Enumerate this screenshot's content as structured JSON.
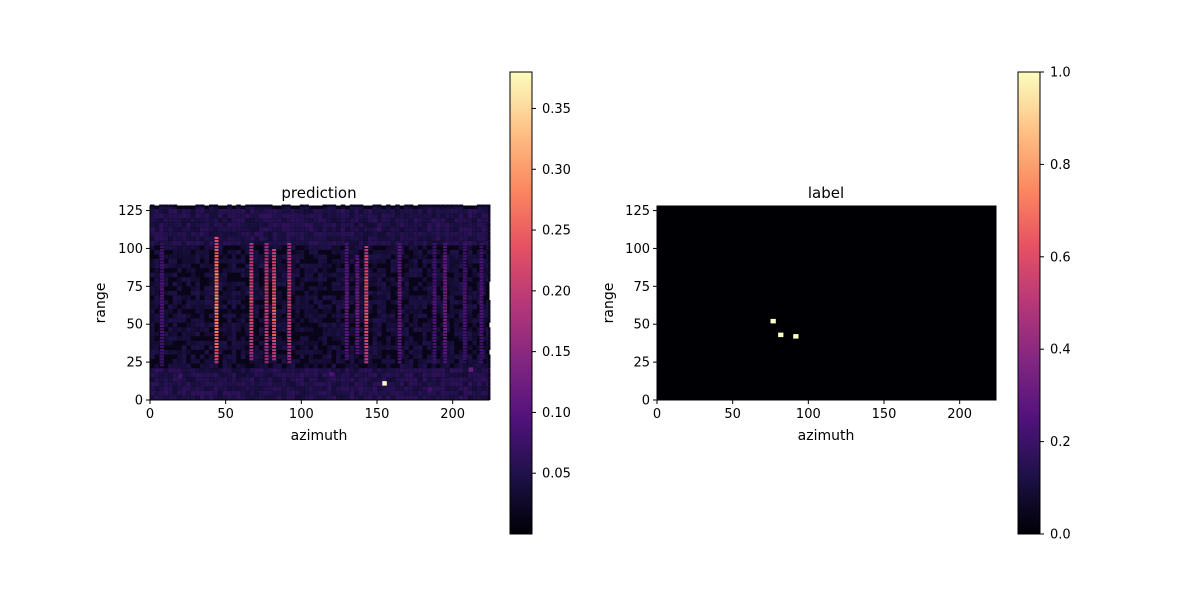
{
  "colors": {
    "cmap": [
      "#000004",
      "#1d1147",
      "#51127c",
      "#822681",
      "#b73779",
      "#e75263",
      "#fc8961",
      "#fec287",
      "#fcfdbf"
    ]
  },
  "chart_data": [
    {
      "type": "heatmap",
      "title": "prediction",
      "xlabel": "azimuth",
      "ylabel": "range",
      "xlim": [
        0,
        224
      ],
      "ylim": [
        0,
        128
      ],
      "xticks": [
        0,
        50,
        100,
        150,
        200
      ],
      "yticks": [
        0,
        25,
        50,
        75,
        100,
        125
      ],
      "colorbar": {
        "min": 0.0,
        "max": 0.38,
        "ticks": [
          0.05,
          0.1,
          0.15,
          0.2,
          0.25,
          0.3,
          0.35
        ],
        "tick_labels": [
          "0.05",
          "0.10",
          "0.15",
          "0.20",
          "0.25",
          "0.30",
          "0.35"
        ]
      },
      "bright_columns": [
        {
          "x": 8,
          "y": [
            22,
            104
          ],
          "value": 0.1
        },
        {
          "x": 44,
          "y": [
            24,
            108
          ],
          "value": 0.3
        },
        {
          "x": 67,
          "y": [
            26,
            104
          ],
          "value": 0.23
        },
        {
          "x": 77,
          "y": [
            24,
            104
          ],
          "value": 0.22
        },
        {
          "x": 82,
          "y": [
            26,
            100
          ],
          "value": 0.26
        },
        {
          "x": 92,
          "y": [
            24,
            104
          ],
          "value": 0.22
        },
        {
          "x": 130,
          "y": [
            26,
            104
          ],
          "value": 0.12
        },
        {
          "x": 137,
          "y": [
            30,
            96
          ],
          "value": 0.13
        },
        {
          "x": 143,
          "y": [
            24,
            102
          ],
          "value": 0.25
        },
        {
          "x": 165,
          "y": [
            24,
            104
          ],
          "value": 0.13
        },
        {
          "x": 188,
          "y": [
            24,
            104
          ],
          "value": 0.1
        },
        {
          "x": 195,
          "y": [
            24,
            104
          ],
          "value": 0.13
        },
        {
          "x": 208,
          "y": [
            24,
            104
          ],
          "value": 0.1
        },
        {
          "x": 219,
          "y": [
            24,
            104
          ],
          "value": 0.1
        }
      ],
      "hot_spots": [
        {
          "x": 155,
          "y": 11,
          "value": 0.38
        },
        {
          "x": 212,
          "y": 20,
          "value": 0.12
        },
        {
          "x": 20,
          "y": 16,
          "value": 0.08
        },
        {
          "x": 120,
          "y": 17,
          "value": 0.09
        },
        {
          "x": 185,
          "y": 7,
          "value": 0.08
        }
      ]
    },
    {
      "type": "heatmap",
      "title": "label",
      "xlabel": "azimuth",
      "ylabel": "range",
      "xlim": [
        0,
        224
      ],
      "ylim": [
        0,
        128
      ],
      "xticks": [
        0,
        50,
        100,
        150,
        200
      ],
      "yticks": [
        0,
        25,
        50,
        75,
        100,
        125
      ],
      "colorbar": {
        "min": 0.0,
        "max": 1.0,
        "ticks": [
          0.0,
          0.2,
          0.4,
          0.6,
          0.8,
          1.0
        ],
        "tick_labels": [
          "0.0",
          "0.2",
          "0.4",
          "0.6",
          "0.8",
          "1.0"
        ]
      },
      "points": [
        {
          "x": 77,
          "y": 52,
          "value": 1.0
        },
        {
          "x": 82,
          "y": 43,
          "value": 1.0
        },
        {
          "x": 92,
          "y": 42,
          "value": 1.0
        }
      ]
    }
  ]
}
